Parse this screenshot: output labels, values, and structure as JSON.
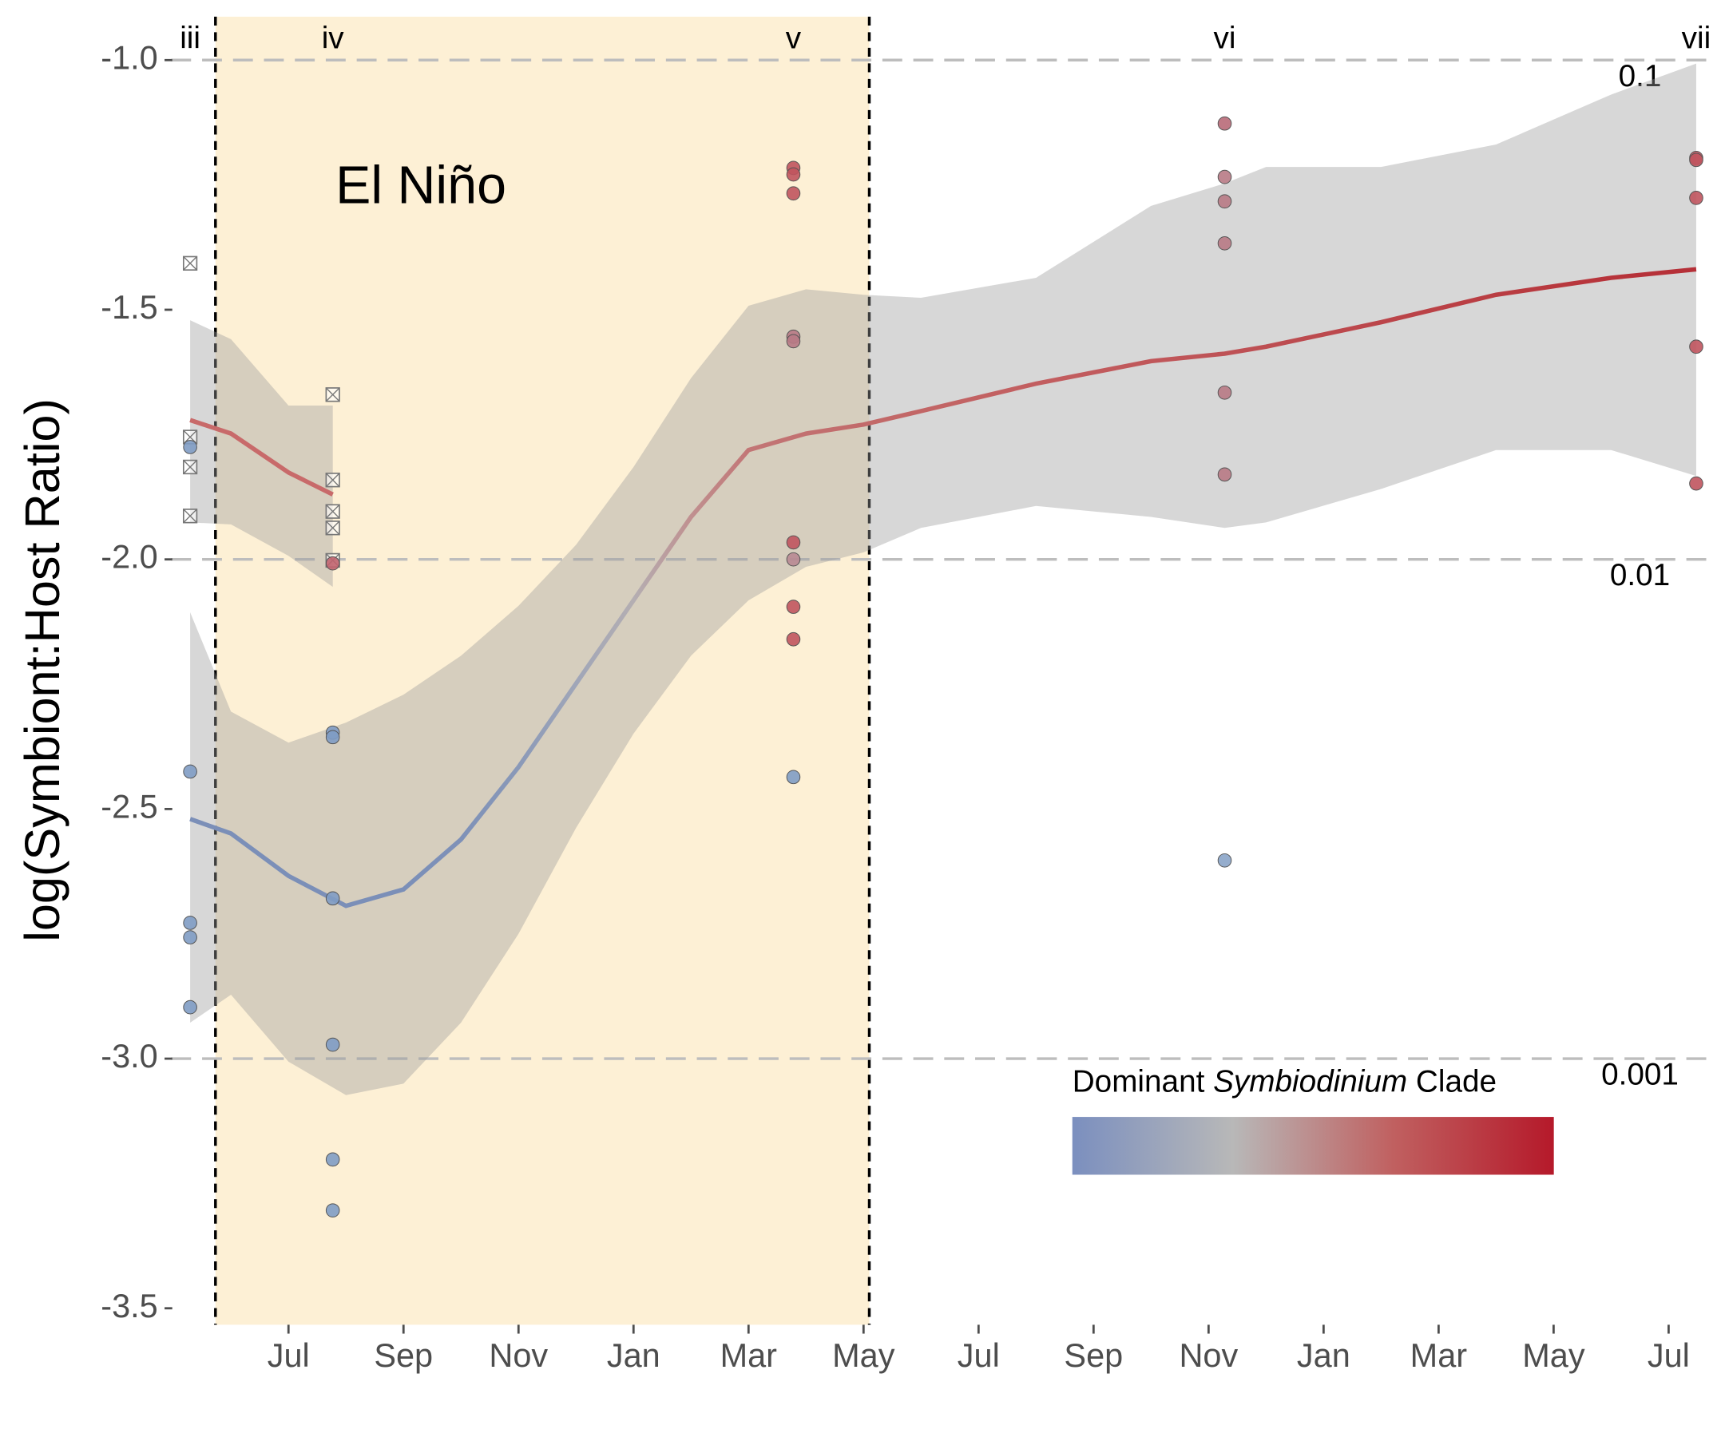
{
  "chart_data": {
    "type": "scatter",
    "y_label": "log(Symbiont:Host Ratio)",
    "xlim": [
      4.96,
      31.75
    ],
    "ylim": [
      -3.533,
      -0.913
    ],
    "xticks": [
      {
        "value": 7,
        "label": "Jul"
      },
      {
        "value": 9,
        "label": "Sep"
      },
      {
        "value": 11,
        "label": "Nov"
      },
      {
        "value": 13,
        "label": "Jan"
      },
      {
        "value": 15,
        "label": "Mar"
      },
      {
        "value": 17,
        "label": "May"
      },
      {
        "value": 19,
        "label": "Jul"
      },
      {
        "value": 21,
        "label": "Sep"
      },
      {
        "value": 23,
        "label": "Nov"
      },
      {
        "value": 25,
        "label": "Jan"
      },
      {
        "value": 27,
        "label": "Mar"
      },
      {
        "value": 29,
        "label": "May"
      },
      {
        "value": 31,
        "label": "Jul"
      }
    ],
    "yticks": [
      {
        "value": -1,
        "label": "-1.0"
      },
      {
        "value": -1.5,
        "label": "-1.5"
      },
      {
        "value": -2,
        "label": "-2.0"
      },
      {
        "value": -2.5,
        "label": "-2.5"
      },
      {
        "value": -3,
        "label": "-3.0"
      },
      {
        "value": -3.5,
        "label": "-3.5"
      }
    ],
    "grid": false,
    "reference_lines": [
      {
        "value": -1,
        "label": "0.1"
      },
      {
        "value": -2,
        "label": "0.01"
      },
      {
        "value": -3,
        "label": "0.001"
      }
    ],
    "event": {
      "label": "El Niño",
      "xlim": [
        5.73,
        17.1
      ],
      "color": "#fdf0d5"
    },
    "period_labels": {
      "labels": [
        "iii",
        "iv",
        "v",
        "vi",
        "vii"
      ],
      "x": [
        5.29,
        7.77,
        15.78,
        23.28,
        31.48
      ]
    },
    "x": [
      5.29,
      5.29,
      5.29,
      5.29,
      5.29,
      5.29,
      5.29,
      5.29,
      5.29,
      7.77,
      7.77,
      7.77,
      7.77,
      7.77,
      7.77,
      7.77,
      7.77,
      7.77,
      7.77,
      7.77,
      7.77,
      15.78,
      15.78,
      15.78,
      15.78,
      15.78,
      15.78,
      15.78,
      15.78,
      15.78,
      15.78,
      23.28,
      23.28,
      23.28,
      23.28,
      23.28,
      23.28,
      23.28,
      31.48,
      31.48,
      31.48,
      31.48,
      31.48
    ],
    "y": [
      -1.407,
      -1.755,
      -1.775,
      -1.815,
      -1.913,
      -2.425,
      -2.728,
      -2.757,
      -2.897,
      -1.67,
      -1.841,
      -1.904,
      -1.937,
      -2.002,
      -2.008,
      -2.347,
      -2.356,
      -2.679,
      -2.972,
      -3.202,
      -3.304,
      -1.216,
      -1.229,
      -1.267,
      -1.554,
      -1.563,
      -1.966,
      -2.0,
      -2.095,
      -2.16,
      -2.436,
      -1.127,
      -1.234,
      -1.283,
      -1.367,
      -1.666,
      -1.83,
      -2.603,
      -1.196,
      -1.2,
      -1.276,
      -1.574,
      -1.848
    ],
    "markers": [
      "box-x",
      "box-x",
      "circle",
      "box-x",
      "box-x",
      "circle",
      "circle",
      "circle",
      "circle",
      "box-x",
      "box-x",
      "box-x",
      "box-x",
      "box-x",
      "circle",
      "circle",
      "circle",
      "circle",
      "circle",
      "circle",
      "circle",
      "circle",
      "circle",
      "circle",
      "circle",
      "circle",
      "circle",
      "circle",
      "circle",
      "circle",
      "circle",
      "circle",
      "circle",
      "circle",
      "circle",
      "circle",
      "circle",
      "circle",
      "circle",
      "circle",
      "circle",
      "circle",
      "circle"
    ],
    "point_colors": [
      "#ffffff",
      "#ffffff",
      "#7f9cc4",
      "#ffffff",
      "#ffffff",
      "#7f9cc4",
      "#7f9cc4",
      "#7f9cc4",
      "#7f9cc4",
      "#ffffff",
      "#ffffff",
      "#ffffff",
      "#ffffff",
      "#ffffff",
      "#c0636e",
      "#7f9cc4",
      "#7f9cc4",
      "#7f9cc4",
      "#7f9cc4",
      "#7f9cc4",
      "#7f9cc4",
      "#c0545e",
      "#c0545e",
      "#c0545e",
      "#b87a85",
      "#b87a85",
      "#c0545e",
      "#b88a92",
      "#c0545e",
      "#c0545e",
      "#7f9cc4",
      "#b86a78",
      "#b87a85",
      "#b87a85",
      "#b87a85",
      "#b87a85",
      "#b87a85",
      "#8aa4c8",
      "#c0545e",
      "#c0545e",
      "#c0545e",
      "#c0545e",
      "#c0545e"
    ],
    "ribbon_color": "#9a9a9a",
    "fits": [
      {
        "x": [
          5.29,
          6.0,
          7.0,
          8.0,
          9.0,
          10,
          11,
          12,
          13,
          14,
          15,
          16,
          17,
          18,
          20,
          22,
          23.28,
          24,
          26,
          28,
          30,
          31.48
        ],
        "y": [
          -2.52,
          -2.549,
          -2.634,
          -2.694,
          -2.661,
          -2.561,
          -2.416,
          -2.249,
          -2.082,
          -1.915,
          -1.781,
          -1.748,
          -1.73,
          -1.703,
          -1.648,
          -1.603,
          -1.588,
          -1.574,
          -1.525,
          -1.47,
          -1.436,
          -1.419
        ],
        "upper": [
          -2.106,
          -2.305,
          -2.367,
          -2.327,
          -2.271,
          -2.193,
          -2.093,
          -1.971,
          -1.815,
          -1.637,
          -1.492,
          -1.459,
          -1.47,
          -1.476,
          -1.436,
          -1.292,
          -1.247,
          -1.214,
          -1.214,
          -1.169,
          -1.069,
          -1.007
        ],
        "lower": [
          -2.928,
          -2.872,
          -3.006,
          -3.073,
          -3.05,
          -2.928,
          -2.75,
          -2.538,
          -2.349,
          -2.193,
          -2.082,
          -2.015,
          -1.986,
          -1.937,
          -1.893,
          -1.915,
          -1.937,
          -1.926,
          -1.859,
          -1.781,
          -1.781,
          -1.833
        ],
        "colors": [
          "#7b8fb8",
          "#7b8fb8",
          "#7b8fb8",
          "#7b8fb8",
          "#7b8fb8",
          "#7e91b8",
          "#8a99b8",
          "#a0a6b8",
          "#b4aeb2",
          "#c09090",
          "#c27676",
          "#c27070",
          "#c26a6a",
          "#c26666",
          "#c25e60",
          "#c0575a",
          "#be5256",
          "#bd4e52",
          "#bb454a",
          "#b93d42",
          "#b7343b",
          "#b52f37"
        ]
      },
      {
        "x": [
          5.29,
          6.0,
          7.0,
          7.77
        ],
        "y": [
          -1.721,
          -1.748,
          -1.826,
          -1.87
        ],
        "upper": [
          -1.521,
          -1.559,
          -1.692,
          -1.692
        ],
        "lower": [
          -1.926,
          -1.93,
          -1.993,
          -2.055
        ],
        "colors": [
          "#c86a6a",
          "#c86a6a",
          "#c86a6a",
          "#c86a6a"
        ]
      }
    ],
    "legend": {
      "title_parts": [
        "Dominant ",
        "Symbiodinium",
        " Clade"
      ],
      "colors": [
        "#7b8fbf",
        "#b8b8b8",
        "#c06060",
        "#b5192a"
      ]
    }
  }
}
